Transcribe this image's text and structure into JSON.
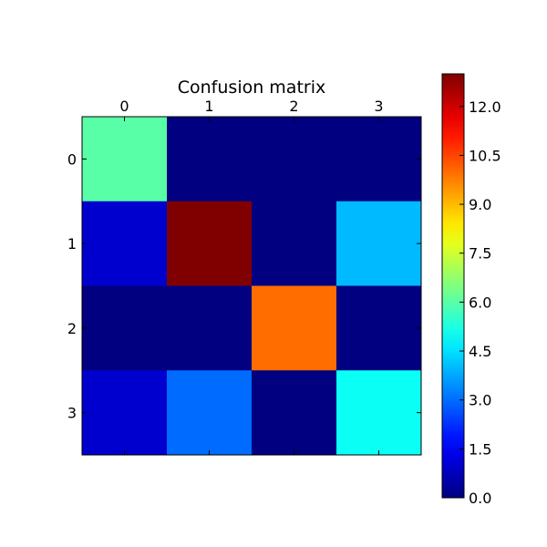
{
  "colorbar": {
    "ticks": [
      "0.0",
      "1.5",
      "3.0",
      "4.5",
      "6.0",
      "7.5",
      "9.0",
      "10.5",
      "12.0"
    ],
    "tick_values": [
      0.0,
      1.5,
      3.0,
      4.5,
      6.0,
      7.5,
      9.0,
      10.5,
      12.0
    ],
    "vmin": 0,
    "vmax": 13,
    "colormap": "jet"
  },
  "chart_data": {
    "type": "heatmap",
    "title": "Confusion matrix",
    "xlabel": "",
    "ylabel": "",
    "x_tick_labels": [
      "0",
      "1",
      "2",
      "3"
    ],
    "y_tick_labels": [
      "0",
      "1",
      "2",
      "3"
    ],
    "x_tick_position": "top",
    "matrix": [
      [
        6,
        0,
        0,
        0
      ],
      [
        1,
        13,
        0,
        4
      ],
      [
        0,
        0,
        10,
        0
      ],
      [
        1,
        3,
        0,
        5
      ]
    ],
    "colormap": "jet",
    "vmin": 0,
    "vmax": 13,
    "grid": false
  }
}
